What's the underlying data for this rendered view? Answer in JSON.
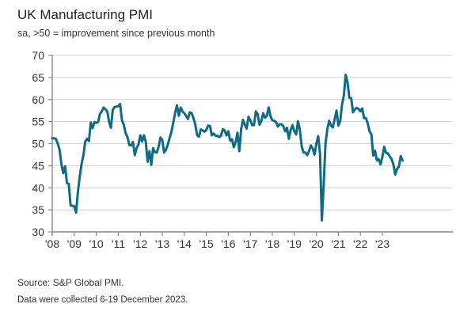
{
  "chart_data": {
    "type": "line",
    "title": "UK Manufacturing PMI",
    "subtitle": "sa, >50 = improvement since previous month",
    "xlabel": "",
    "ylabel": "",
    "ylim": [
      30,
      70
    ],
    "yticks": [
      30,
      35,
      40,
      45,
      50,
      55,
      60,
      65,
      70
    ],
    "xticks": [
      "'08",
      "'09",
      "'10",
      "'11",
      "'12",
      "'13",
      "'14",
      "'15",
      "'16",
      "'17",
      "'18",
      "'19",
      "'20",
      "'21",
      "'22",
      "'23"
    ],
    "x_range": [
      "2008-01",
      "2023-12"
    ],
    "grid": true,
    "legend": "none",
    "line_color": "#0f6b85",
    "series": [
      {
        "name": "UK Manufacturing PMI",
        "start": "2008-01",
        "frequency": "monthly",
        "values": [
          51.2,
          51.2,
          51.1,
          50.0,
          48.6,
          45.4,
          43.3,
          44.9,
          41.1,
          40.9,
          36.0,
          35.9,
          35.8,
          34.4,
          39.1,
          42.6,
          45.4,
          47.4,
          50.5,
          51.1,
          50.6,
          54.8,
          53.5,
          54.9,
          54.7,
          54.9,
          56.7,
          57.3,
          58.2,
          57.8,
          57.3,
          54.9,
          53.6,
          57.7,
          58.3,
          58.4,
          58.5,
          59.0,
          55.3,
          54.3,
          52.4,
          51.5,
          49.7,
          49.6,
          50.4,
          47.4,
          49.0,
          49.8,
          51.9,
          50.5,
          51.9,
          50.4,
          45.9,
          48.3,
          45.2,
          49.0,
          48.1,
          48.0,
          49.3,
          51.4,
          50.8,
          48.0,
          48.6,
          49.8,
          51.3,
          52.7,
          54.8,
          57.0,
          58.7,
          56.3,
          58.2,
          57.3,
          56.9,
          56.3,
          55.6,
          57.1,
          56.9,
          55.8,
          54.3,
          51.9,
          51.6,
          53.2,
          53.0,
          52.7,
          53.1,
          54.1,
          54.0,
          51.9,
          52.3,
          51.8,
          51.8,
          51.5,
          51.8,
          53.3,
          53.0,
          51.9,
          52.8,
          50.7,
          51.0,
          49.2,
          50.4,
          52.5,
          48.3,
          53.3,
          55.4,
          54.3,
          53.4,
          56.1,
          55.3,
          54.2,
          54.2,
          57.3,
          56.7,
          54.3,
          55.1,
          56.9,
          55.9,
          56.3,
          58.2,
          56.2,
          55.3,
          55.2,
          54.9,
          53.9,
          54.4,
          54.4,
          54.0,
          52.8,
          53.6,
          51.1,
          53.1,
          54.2,
          52.8,
          52.1,
          55.1,
          53.1,
          49.4,
          48.0,
          48.0,
          47.4,
          48.3,
          49.6,
          48.9,
          47.5,
          50.0,
          51.7,
          47.8,
          32.6,
          40.7,
          50.1,
          53.3,
          55.2,
          54.1,
          53.7,
          55.6,
          57.5,
          54.1,
          55.1,
          58.9,
          60.9,
          65.6,
          63.9,
          60.4,
          60.3,
          57.1,
          57.8,
          58.1,
          57.9,
          57.3,
          58.0,
          55.8,
          55.8,
          54.6,
          52.8,
          52.1,
          47.3,
          48.4,
          46.2,
          46.5,
          45.3,
          47.0,
          49.3,
          47.9,
          47.8,
          47.1,
          46.5,
          45.3,
          43.0,
          44.3,
          44.8,
          47.2,
          46.2
        ]
      }
    ]
  },
  "footer": {
    "source": "Source: S&P Global PMI.",
    "note": "Data were collected 6-19 December 2023."
  }
}
